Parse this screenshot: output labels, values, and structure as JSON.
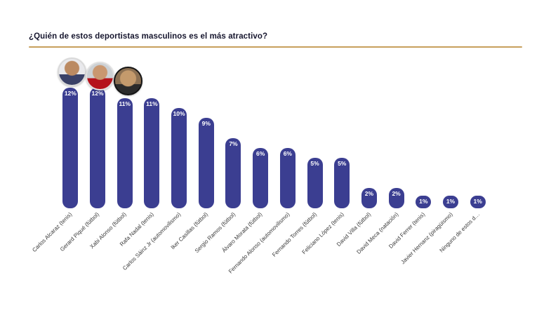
{
  "page": {
    "title": "¿Quién de estos deportistas masculinos es el más atractivo?"
  },
  "style": {
    "bar_color": "#3b3e91",
    "accent_line_color": "#c7a05c",
    "background": "#ffffff"
  },
  "avatars": [
    {
      "name": "avatar-carlos-alcaraz"
    },
    {
      "name": "avatar-gerard-pique"
    },
    {
      "name": "avatar-xabi-alonso"
    }
  ],
  "chart_data": {
    "type": "bar",
    "title": "¿Quién de estos deportistas masculinos es el más atractivo?",
    "categories": [
      "Carlos Alcaraz (tenis)",
      "Gerard Piqué (fútbol)",
      "Xabi Alonso (fútbol)",
      "Rafa Nadal (tenis)",
      "Carlos Sáinz Jr (automovilismo)",
      "Iker Casillas (fútbol)",
      "Sergio Ramos (fútbol)",
      "Álvaro Morata (fútbol)",
      "Fernando Alonso (automovilismo)",
      "Fernando Torres (fútbol)",
      "Feliciano López (tenis)",
      "David Villa (fútbol)",
      "David Meca (natación)",
      "David Ferrer (tenis)",
      "Javier Hernanz (piragüismo)",
      "Ninguno de estos d…"
    ],
    "values": [
      12,
      12,
      11,
      11,
      10,
      9,
      7,
      6,
      6,
      5,
      5,
      2,
      2,
      1,
      1,
      1
    ],
    "value_labels": [
      "12%",
      "12%",
      "11%",
      "11%",
      "10%",
      "9%",
      "7%",
      "6%",
      "6%",
      "5%",
      "5%",
      "2%",
      "2%",
      "1%",
      "1%",
      "1%"
    ],
    "xlabel": "",
    "ylabel": "",
    "ylim": [
      0,
      13
    ],
    "grid": false,
    "legend": false,
    "bar_color": "#3b3e91",
    "value_label_position": "inside-top",
    "category_label_rotation": -45
  }
}
